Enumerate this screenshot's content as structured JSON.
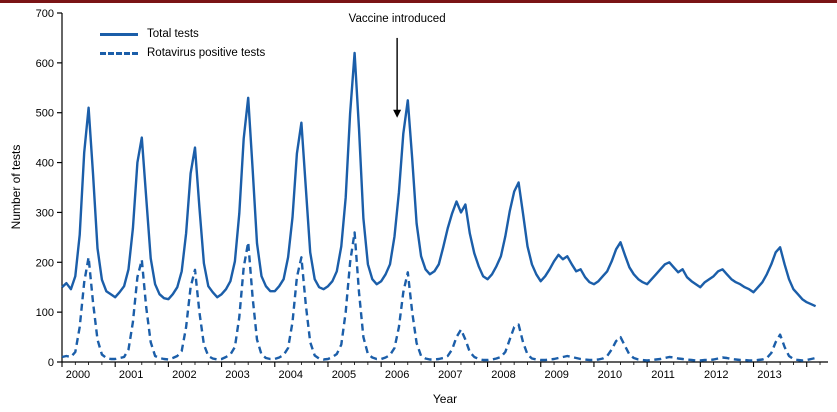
{
  "page": {
    "top_rule_color": "#7a1416",
    "background": "#ffffff"
  },
  "chart_data": {
    "type": "line",
    "title": "",
    "xlabel": "Year",
    "ylabel": "Number of tests",
    "xlim": [
      2000,
      2014.4
    ],
    "ylim": [
      0,
      700
    ],
    "y_ticks": [
      0,
      100,
      200,
      300,
      400,
      500,
      600,
      700
    ],
    "x_tick_years": [
      2000,
      2001,
      2002,
      2003,
      2004,
      2005,
      2006,
      2007,
      2008,
      2009,
      2010,
      2011,
      2012,
      2013,
      2014
    ],
    "x_tick_labels": [
      "2000",
      "2001",
      "2002",
      "2003",
      "2004",
      "2005",
      "2006",
      "2007",
      "2008",
      "2009",
      "2010",
      "2011",
      "2012",
      "2013"
    ],
    "grid": "off",
    "legend_position": "top-left",
    "line_color": "#1b5ea9",
    "axis_color": "#000000",
    "legend": [
      {
        "label": "Total tests",
        "style": "solid"
      },
      {
        "label": "Rotavirus positive tests",
        "style": "dashed"
      }
    ],
    "annotation": {
      "text": "Vaccine introduced",
      "x_year": 2006.3,
      "arrow_from_value": 650,
      "arrow_to_value": 490
    },
    "x_start": 2000,
    "points_per_year": 12,
    "series": [
      {
        "name": "Total tests",
        "style": "solid",
        "values": [
          150,
          158,
          146,
          172,
          255,
          420,
          510,
          378,
          228,
          165,
          142,
          136,
          130,
          140,
          152,
          186,
          268,
          400,
          450,
          330,
          208,
          156,
          136,
          128,
          126,
          136,
          150,
          182,
          258,
          378,
          430,
          310,
          198,
          152,
          140,
          130,
          136,
          146,
          162,
          202,
          298,
          448,
          530,
          388,
          238,
          172,
          152,
          142,
          142,
          152,
          166,
          210,
          290,
          418,
          480,
          350,
          220,
          166,
          150,
          146,
          152,
          162,
          182,
          232,
          330,
          498,
          620,
          468,
          288,
          196,
          166,
          156,
          162,
          176,
          196,
          252,
          340,
          458,
          525,
          408,
          278,
          212,
          186,
          176,
          182,
          196,
          230,
          268,
          298,
          322,
          300,
          316,
          258,
          218,
          192,
          172,
          166,
          176,
          192,
          212,
          252,
          302,
          342,
          360,
          298,
          232,
          196,
          176,
          162,
          172,
          186,
          202,
          215,
          206,
          212,
          196,
          182,
          186,
          170,
          160,
          156,
          162,
          172,
          182,
          202,
          226,
          240,
          214,
          190,
          176,
          166,
          160,
          156,
          166,
          176,
          186,
          196,
          200,
          190,
          180,
          186,
          170,
          162,
          156,
          150,
          160,
          166,
          172,
          182,
          186,
          176,
          166,
          160,
          156,
          150,
          146,
          140,
          150,
          160,
          176,
          196,
          220,
          230,
          196,
          166,
          146,
          136,
          126,
          120,
          116,
          112
        ]
      },
      {
        "name": "Rotavirus positive tests",
        "style": "dashed",
        "values": [
          10,
          12,
          10,
          20,
          70,
          160,
          210,
          120,
          45,
          15,
          8,
          6,
          6,
          8,
          10,
          25,
          80,
          170,
          205,
          110,
          40,
          12,
          8,
          6,
          5,
          8,
          12,
          22,
          70,
          150,
          185,
          100,
          35,
          12,
          7,
          5,
          6,
          10,
          15,
          30,
          90,
          190,
          240,
          130,
          45,
          15,
          8,
          6,
          6,
          9,
          14,
          28,
          80,
          170,
          210,
          115,
          40,
          13,
          7,
          5,
          6,
          10,
          16,
          35,
          100,
          200,
          260,
          140,
          50,
          16,
          9,
          6,
          6,
          9,
          14,
          28,
          70,
          140,
          180,
          100,
          38,
          12,
          7,
          5,
          5,
          6,
          8,
          12,
          25,
          50,
          65,
          45,
          20,
          10,
          6,
          4,
          4,
          5,
          7,
          10,
          20,
          45,
          70,
          75,
          40,
          15,
          7,
          5,
          4,
          4,
          5,
          6,
          8,
          10,
          12,
          10,
          8,
          6,
          5,
          4,
          4,
          5,
          7,
          12,
          25,
          42,
          50,
          32,
          15,
          8,
          5,
          4,
          3,
          4,
          5,
          6,
          8,
          10,
          9,
          7,
          6,
          5,
          4,
          3,
          3,
          4,
          4,
          5,
          7,
          9,
          8,
          6,
          5,
          4,
          4,
          3,
          3,
          4,
          5,
          8,
          18,
          40,
          55,
          30,
          12,
          6,
          4,
          3,
          4,
          6,
          8
        ]
      }
    ]
  }
}
